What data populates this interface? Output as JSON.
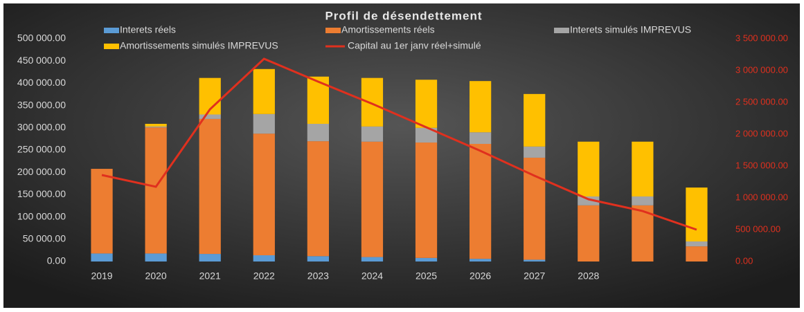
{
  "chart_data": {
    "type": "bar",
    "stacked": true,
    "title": "Profil de désendettement",
    "categories": [
      "2019",
      "2020",
      "2021",
      "2022",
      "2023",
      "2024",
      "2025",
      "2026",
      "2027",
      "2028",
      null,
      null
    ],
    "series": [
      {
        "name": "Interets réels",
        "color": "#5b9bd5",
        "values": [
          18000,
          18000,
          17000,
          14000,
          12000,
          10000,
          8000,
          6000,
          4000,
          0,
          0,
          0
        ]
      },
      {
        "name": "Amortissements réels",
        "color": "#ed7d31",
        "values": [
          190000,
          283000,
          303000,
          273000,
          258000,
          259000,
          259000,
          258000,
          229000,
          126000,
          126000,
          34000
        ]
      },
      {
        "name": "Interets simulés IMPREVUS",
        "color": "#a5a5a5",
        "values": [
          0,
          2000,
          10000,
          44000,
          39000,
          34000,
          33000,
          26000,
          25000,
          20000,
          20000,
          11000
        ]
      },
      {
        "name": "Amortissements simulés IMPREVUS",
        "color": "#ffc000",
        "values": [
          0,
          6000,
          82000,
          101000,
          106000,
          109000,
          108000,
          115000,
          118000,
          123000,
          123000,
          121000
        ]
      },
      {
        "name": "Capital au 1er janv réel+simulé",
        "color": "#e0301e",
        "type": "line",
        "axis": "y2",
        "values": [
          1359000,
          1174000,
          2391000,
          3185000,
          2826000,
          2478000,
          2109000,
          1739000,
          1348000,
          978000,
          793000,
          500000
        ]
      }
    ],
    "ylim": [
      0,
      500000
    ],
    "yticks": [
      {
        "value": 0,
        "label": "0.00"
      },
      {
        "value": 50000,
        "label": "50 000.00"
      },
      {
        "value": 100000,
        "label": "100 000.00"
      },
      {
        "value": 150000,
        "label": "150 000.00"
      },
      {
        "value": 200000,
        "label": "200 000.00"
      },
      {
        "value": 250000,
        "label": "250 000.00"
      },
      {
        "value": 300000,
        "label": "300 000.00"
      },
      {
        "value": 350000,
        "label": "350 000.00"
      },
      {
        "value": 400000,
        "label": "400 000.00"
      },
      {
        "value": 450000,
        "label": "450 000.00"
      },
      {
        "value": 500000,
        "label": "500 000.00"
      }
    ],
    "y2lim": [
      0,
      3500000
    ],
    "y2ticks": [
      {
        "value": 0,
        "label": "0.00"
      },
      {
        "value": 500000,
        "label": "500 000.00"
      },
      {
        "value": 1000000,
        "label": "1 000 000.00"
      },
      {
        "value": 1500000,
        "label": "1 500 000.00"
      },
      {
        "value": 2000000,
        "label": "2 000 000.00"
      },
      {
        "value": 2500000,
        "label": "2 500 000.00"
      },
      {
        "value": 3000000,
        "label": "3 000 000.00"
      },
      {
        "value": 3500000,
        "label": "3 500 000.00"
      }
    ]
  }
}
